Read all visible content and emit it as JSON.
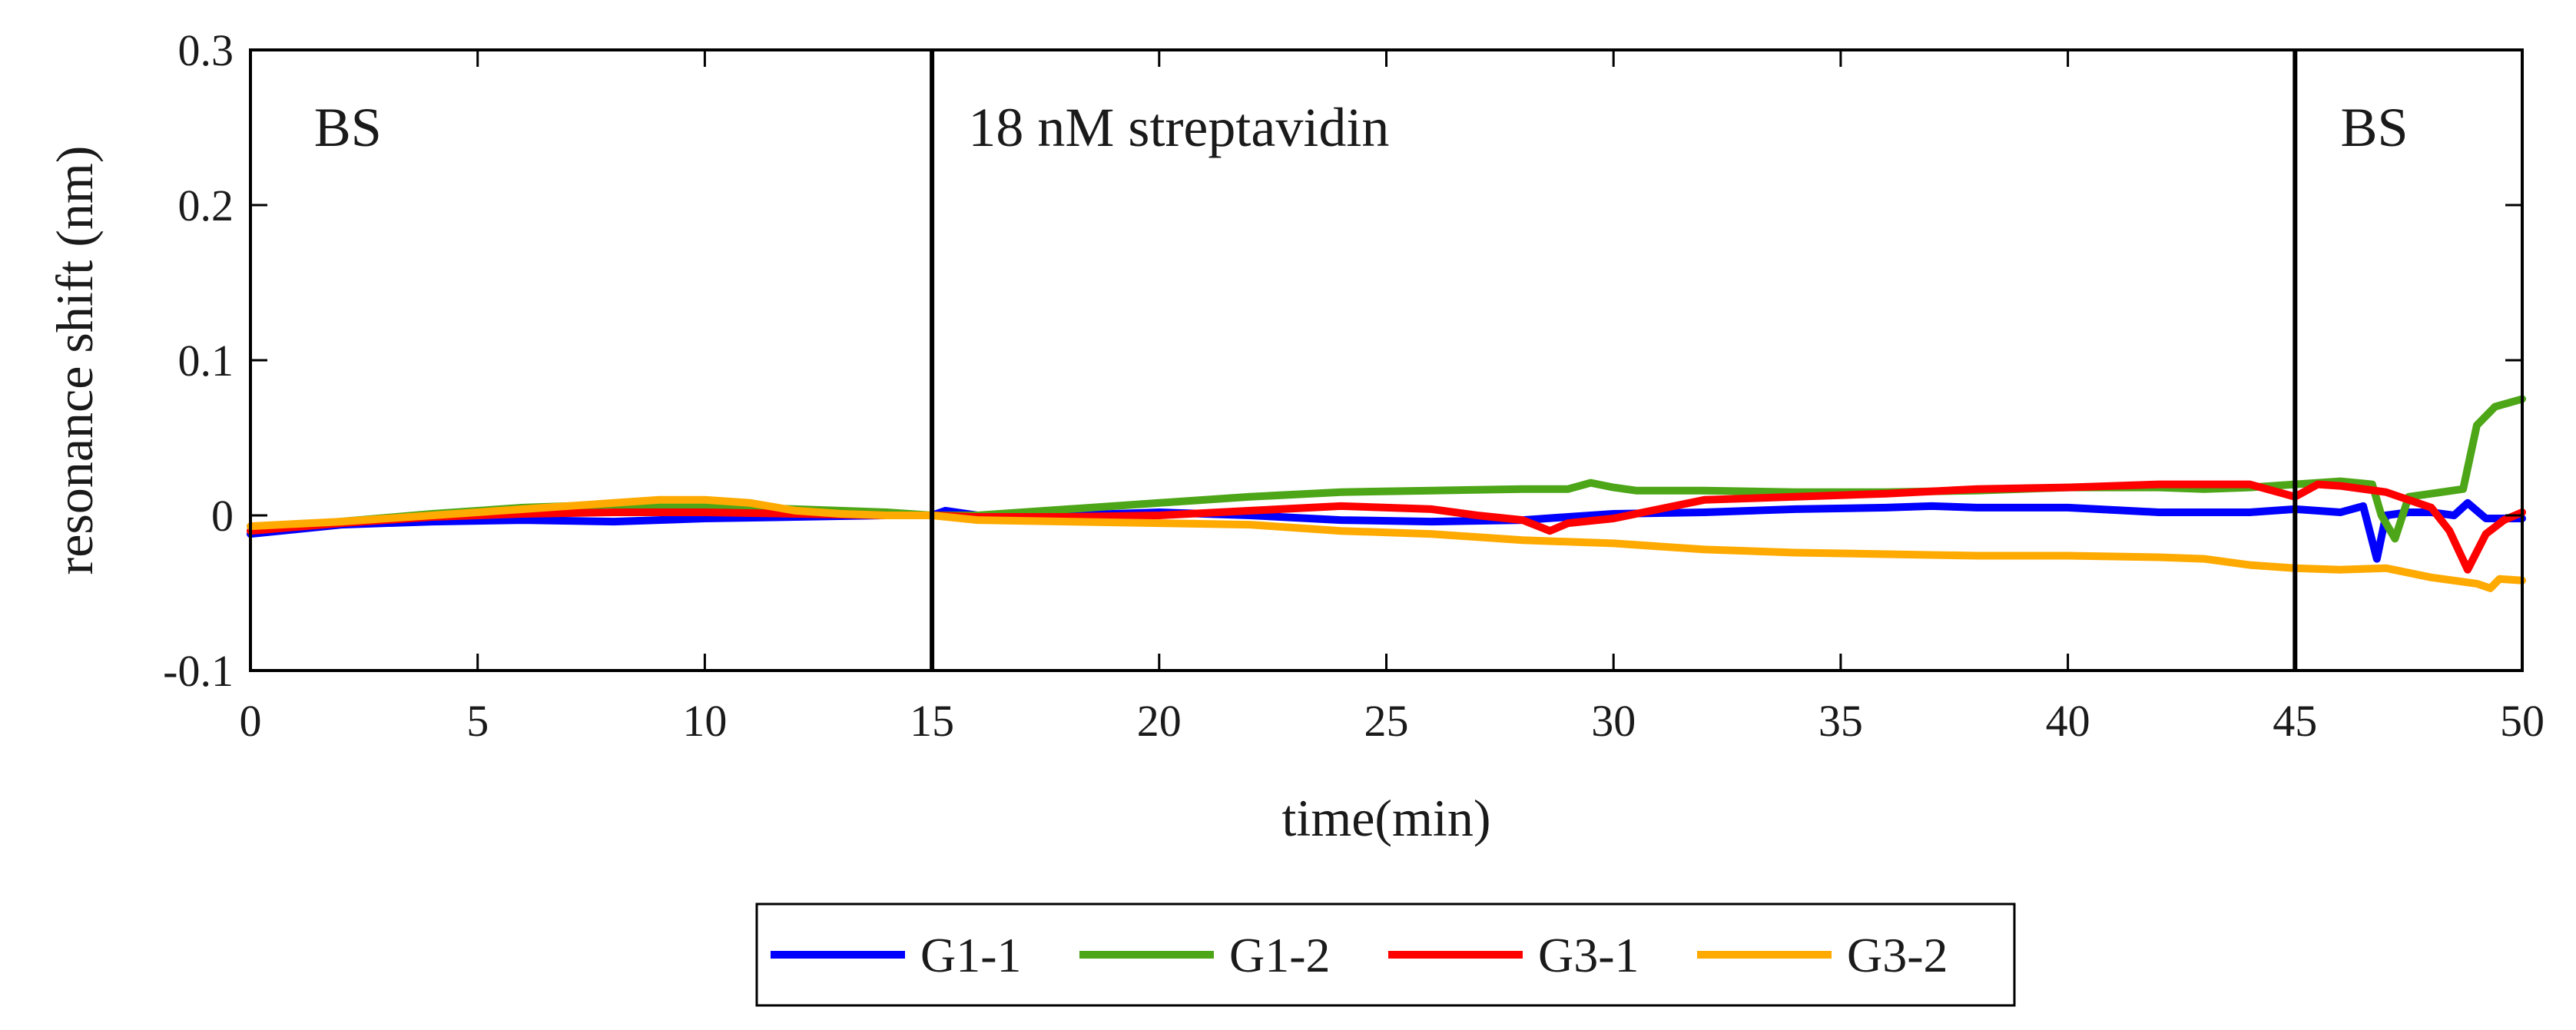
{
  "chart_data": {
    "type": "line",
    "title": "",
    "xlabel": "time(min)",
    "ylabel": "resonance shift (nm)",
    "xlim": [
      0,
      50
    ],
    "ylim": [
      -0.1,
      0.3
    ],
    "x_ticks": [
      0,
      5,
      10,
      15,
      20,
      25,
      30,
      35,
      40,
      45,
      50
    ],
    "x_tick_labels": [
      "0",
      "5",
      "10",
      "15",
      "20",
      "25",
      "30",
      "35",
      "40",
      "45",
      "50"
    ],
    "y_ticks": [
      -0.1,
      0,
      0.1,
      0.2,
      0.3
    ],
    "y_tick_labels": [
      "-0.1",
      "0",
      "0.1",
      "0.2",
      "0.3"
    ],
    "grid": false,
    "legend_position": "bottom",
    "phase_boundaries": [
      15,
      45
    ],
    "phase_labels": [
      {
        "x": 1.4,
        "text": "BS"
      },
      {
        "x": 15.8,
        "text": "18 nM streptavidin"
      },
      {
        "x": 46.0,
        "text": "BS"
      }
    ],
    "series": [
      {
        "name": "G1-1",
        "color": "#0000ff",
        "points": [
          [
            0,
            -0.012
          ],
          [
            2,
            -0.006
          ],
          [
            4,
            -0.004
          ],
          [
            6,
            -0.003
          ],
          [
            8,
            -0.004
          ],
          [
            10,
            -0.002
          ],
          [
            12,
            -0.001
          ],
          [
            14,
            0.0
          ],
          [
            15,
            0.0
          ],
          [
            15.3,
            0.003
          ],
          [
            16,
            0.0
          ],
          [
            18,
            0.0
          ],
          [
            20,
            0.002
          ],
          [
            22,
            0.0
          ],
          [
            24,
            -0.003
          ],
          [
            26,
            -0.004
          ],
          [
            28,
            -0.003
          ],
          [
            29,
            -0.001
          ],
          [
            30,
            0.001
          ],
          [
            32,
            0.002
          ],
          [
            34,
            0.004
          ],
          [
            36,
            0.005
          ],
          [
            37,
            0.006
          ],
          [
            38,
            0.005
          ],
          [
            40,
            0.005
          ],
          [
            42,
            0.002
          ],
          [
            44,
            0.002
          ],
          [
            45,
            0.004
          ],
          [
            46,
            0.002
          ],
          [
            46.5,
            0.006
          ],
          [
            46.8,
            -0.028
          ],
          [
            47.0,
            0.0
          ],
          [
            47.5,
            0.002
          ],
          [
            48,
            0.002
          ],
          [
            48.5,
            0.0
          ],
          [
            48.8,
            0.008
          ],
          [
            49.2,
            -0.002
          ],
          [
            50,
            -0.002
          ]
        ]
      },
      {
        "name": "G1-2",
        "color": "#4da617",
        "points": [
          [
            0,
            -0.01
          ],
          [
            2,
            -0.004
          ],
          [
            4,
            0.001
          ],
          [
            6,
            0.005
          ],
          [
            8,
            0.007
          ],
          [
            10,
            0.006
          ],
          [
            12,
            0.004
          ],
          [
            14,
            0.002
          ],
          [
            15,
            0.0
          ],
          [
            16,
            0.0
          ],
          [
            18,
            0.004
          ],
          [
            20,
            0.008
          ],
          [
            22,
            0.012
          ],
          [
            24,
            0.015
          ],
          [
            26,
            0.016
          ],
          [
            28,
            0.017
          ],
          [
            29,
            0.017
          ],
          [
            29.5,
            0.021
          ],
          [
            30,
            0.018
          ],
          [
            30.5,
            0.016
          ],
          [
            32,
            0.016
          ],
          [
            34,
            0.015
          ],
          [
            36,
            0.015
          ],
          [
            38,
            0.016
          ],
          [
            40,
            0.018
          ],
          [
            42,
            0.018
          ],
          [
            43,
            0.017
          ],
          [
            44,
            0.018
          ],
          [
            45,
            0.02
          ],
          [
            46,
            0.022
          ],
          [
            46.7,
            0.02
          ],
          [
            46.9,
            0.0
          ],
          [
            47.2,
            -0.015
          ],
          [
            47.5,
            0.012
          ],
          [
            48,
            0.014
          ],
          [
            48.7,
            0.017
          ],
          [
            49.0,
            0.058
          ],
          [
            49.4,
            0.07
          ],
          [
            50,
            0.075
          ]
        ]
      },
      {
        "name": "G3-1",
        "color": "#ff0000",
        "points": [
          [
            0,
            -0.01
          ],
          [
            2,
            -0.005
          ],
          [
            4,
            -0.001
          ],
          [
            6,
            0.001
          ],
          [
            8,
            0.002
          ],
          [
            10,
            0.002
          ],
          [
            12,
            0.001
          ],
          [
            14,
            0.0
          ],
          [
            15,
            0.0
          ],
          [
            16,
            -0.001
          ],
          [
            18,
            -0.001
          ],
          [
            20,
            0.0
          ],
          [
            22,
            0.003
          ],
          [
            24,
            0.006
          ],
          [
            25,
            0.005
          ],
          [
            26,
            0.004
          ],
          [
            27,
            0.0
          ],
          [
            28,
            -0.003
          ],
          [
            28.6,
            -0.01
          ],
          [
            29,
            -0.005
          ],
          [
            30,
            -0.002
          ],
          [
            31,
            0.004
          ],
          [
            32,
            0.01
          ],
          [
            34,
            0.012
          ],
          [
            36,
            0.014
          ],
          [
            38,
            0.017
          ],
          [
            40,
            0.018
          ],
          [
            42,
            0.02
          ],
          [
            44,
            0.02
          ],
          [
            45,
            0.012
          ],
          [
            45.5,
            0.02
          ],
          [
            46,
            0.019
          ],
          [
            47,
            0.015
          ],
          [
            47.5,
            0.01
          ],
          [
            48,
            0.005
          ],
          [
            48.4,
            -0.01
          ],
          [
            48.8,
            -0.035
          ],
          [
            49.2,
            -0.012
          ],
          [
            49.6,
            -0.003
          ],
          [
            50,
            0.002
          ]
        ]
      },
      {
        "name": "G3-2",
        "color": "#ffaa00",
        "points": [
          [
            0,
            -0.007
          ],
          [
            2,
            -0.004
          ],
          [
            4,
            0.0
          ],
          [
            6,
            0.004
          ],
          [
            8,
            0.008
          ],
          [
            9,
            0.01
          ],
          [
            10,
            0.01
          ],
          [
            11,
            0.008
          ],
          [
            12,
            0.003
          ],
          [
            13,
            0.001
          ],
          [
            14,
            0.0
          ],
          [
            15,
            0.0
          ],
          [
            16,
            -0.003
          ],
          [
            18,
            -0.004
          ],
          [
            20,
            -0.005
          ],
          [
            22,
            -0.006
          ],
          [
            24,
            -0.01
          ],
          [
            26,
            -0.012
          ],
          [
            28,
            -0.016
          ],
          [
            30,
            -0.018
          ],
          [
            32,
            -0.022
          ],
          [
            34,
            -0.024
          ],
          [
            36,
            -0.025
          ],
          [
            38,
            -0.026
          ],
          [
            40,
            -0.026
          ],
          [
            42,
            -0.027
          ],
          [
            43,
            -0.028
          ],
          [
            44,
            -0.032
          ],
          [
            45,
            -0.034
          ],
          [
            46,
            -0.035
          ],
          [
            47,
            -0.034
          ],
          [
            48,
            -0.04
          ],
          [
            49,
            -0.044
          ],
          [
            49.3,
            -0.047
          ],
          [
            49.5,
            -0.041
          ],
          [
            50,
            -0.042
          ]
        ]
      }
    ]
  }
}
